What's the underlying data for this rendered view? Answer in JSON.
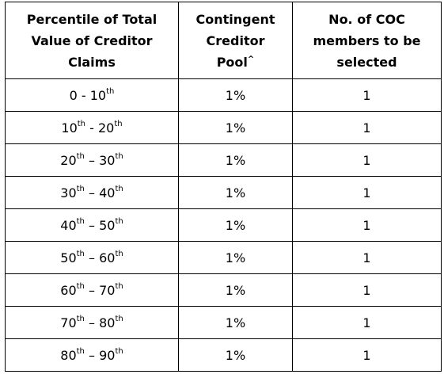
{
  "table": {
    "headers": {
      "col1": "Percentile of Total Value of Creditor Claims",
      "col2": "Contingent Creditor Pool",
      "col2_mark": "^",
      "col3": "No. of COC members to be selected"
    },
    "rows": [
      {
        "from": "0",
        "from_sup": "",
        "sep": " - ",
        "to": "10",
        "to_sup": "th",
        "pool": "1%",
        "members": "1"
      },
      {
        "from": "10",
        "from_sup": "th",
        "sep": " - ",
        "to": "20",
        "to_sup": "th",
        "pool": "1%",
        "members": "1"
      },
      {
        "from": "20",
        "from_sup": "th",
        "sep": " – ",
        "to": "30",
        "to_sup": "th",
        "pool": "1%",
        "members": "1"
      },
      {
        "from": "30",
        "from_sup": "th",
        "sep": " – ",
        "to": "40",
        "to_sup": "th",
        "pool": "1%",
        "members": "1"
      },
      {
        "from": "40",
        "from_sup": "th",
        "sep": " – ",
        "to": "50",
        "to_sup": "th",
        "pool": "1%",
        "members": "1"
      },
      {
        "from": "50",
        "from_sup": "th",
        "sep": " – ",
        "to": "60",
        "to_sup": "th",
        "pool": "1%",
        "members": "1"
      },
      {
        "from": "60",
        "from_sup": "th",
        "sep": " – ",
        "to": "70",
        "to_sup": "th",
        "pool": "1%",
        "members": "1"
      },
      {
        "from": "70",
        "from_sup": "th",
        "sep": " – ",
        "to": "80",
        "to_sup": "th",
        "pool": "1%",
        "members": "1"
      },
      {
        "from": "80",
        "from_sup": "th",
        "sep": " – ",
        "to": "90",
        "to_sup": "th",
        "pool": "1%",
        "members": "1"
      }
    ]
  }
}
